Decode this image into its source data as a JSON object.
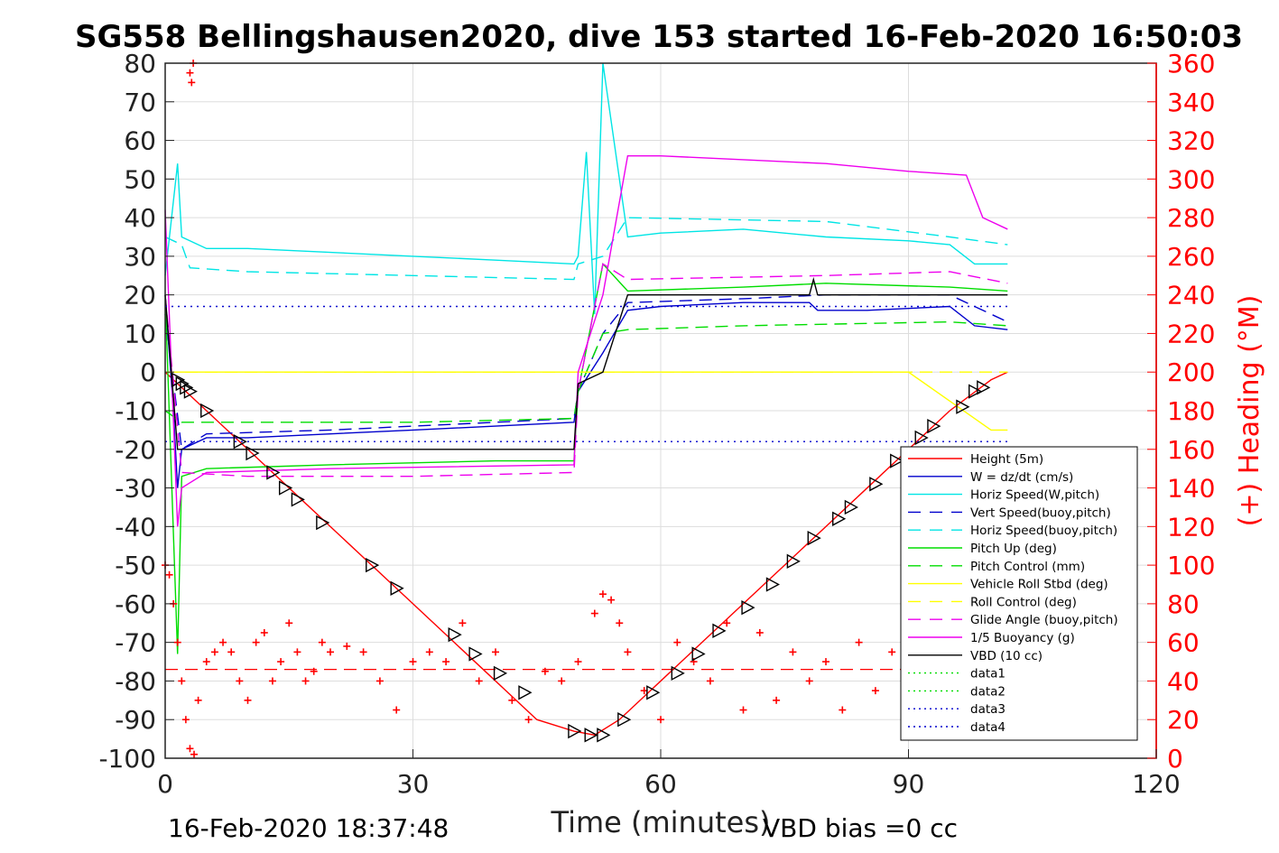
{
  "chart_data": {
    "type": "line",
    "title": "SG558 Bellingshausen2020, dive 153 started 16-Feb-2020 16:50:03",
    "xlabel": "Time (minutes)",
    "ylabel_right": "(+) Heading (°M)",
    "xlim": [
      0,
      120
    ],
    "ylim": [
      -100,
      80
    ],
    "ylim_right": [
      0,
      360
    ],
    "x_ticks": [
      "0",
      "30",
      "60",
      "90",
      "120"
    ],
    "y_ticks": [
      "80",
      "70",
      "60",
      "50",
      "40",
      "30",
      "20",
      "10",
      "0",
      "-10",
      "-20",
      "-30",
      "-40",
      "-50",
      "-60",
      "-70",
      "-80",
      "-90",
      "-100"
    ],
    "y_right_ticks": [
      "360",
      "340",
      "320",
      "300",
      "280",
      "260",
      "240",
      "220",
      "200",
      "180",
      "160",
      "140",
      "120",
      "100",
      "80",
      "60",
      "40",
      "20",
      "0"
    ],
    "grid": true,
    "legend_position": "bottom-right",
    "footer_left": "16-Feb-2020 18:37:48",
    "footer_right": "VBD bias =0 cc",
    "colors": {
      "height": "#ff0000",
      "w": "#0000cc",
      "horiz_speed_w": "#00e5e5",
      "vert_speed_buoy": "#0000cc",
      "horiz_speed_buoy": "#00e5e5",
      "pitch": "#00dd00",
      "pitch_control": "#00dd00",
      "roll": "#ffff00",
      "roll_control": "#ffff00",
      "glide_angle": "#ee00ee",
      "buoyancy": "#ee00ee",
      "vbd": "#000000",
      "heading": "#ff0000"
    },
    "series": [
      {
        "name": "Height (5m)",
        "style": "solid",
        "color": "#ff0000",
        "x": [
          0,
          5,
          10,
          15,
          20,
          25,
          30,
          35,
          40,
          45,
          49.5,
          52,
          55,
          60,
          65,
          70,
          75,
          80,
          85,
          90,
          95,
          100,
          102
        ],
        "y": [
          0,
          -10,
          -20,
          -30,
          -40,
          -50,
          -60,
          -70,
          -80,
          -90,
          -93,
          -94,
          -90,
          -80,
          -70,
          -60,
          -50,
          -40,
          -30,
          -20,
          -10,
          -2,
          0
        ]
      },
      {
        "name": "W = dz/dt (cm/s)",
        "style": "solid",
        "color": "#0000cc",
        "x": [
          0,
          1,
          1.5,
          2,
          5,
          10,
          20,
          30,
          40,
          49.5,
          50,
          53,
          56,
          60,
          70,
          78,
          79,
          85,
          95,
          98,
          102
        ],
        "y": [
          20,
          -10,
          -30,
          -20,
          -17,
          -17,
          -16,
          -15,
          -14,
          -13,
          -5,
          5,
          16,
          17,
          18,
          18,
          16,
          16,
          17,
          12,
          11
        ]
      },
      {
        "name": "Horiz Speed(W,pitch)",
        "style": "solid",
        "color": "#00e5e5",
        "x": [
          0,
          1.5,
          2,
          5,
          10,
          20,
          30,
          40,
          49.5,
          50,
          51,
          52,
          53,
          56,
          60,
          70,
          80,
          90,
          95,
          98,
          102
        ],
        "y": [
          25,
          54,
          35,
          32,
          32,
          31,
          30,
          29,
          28,
          30,
          57,
          15,
          80,
          35,
          36,
          37,
          35,
          34,
          33,
          28,
          28
        ]
      },
      {
        "name": "Vert Speed(buoy,pitch)",
        "style": "dashed",
        "color": "#0000cc",
        "x": [
          0,
          2,
          5,
          20,
          40,
          49.5,
          50,
          53,
          56,
          70,
          80,
          95,
          102
        ],
        "y": [
          15,
          -20,
          -16,
          -15,
          -13,
          -12,
          -5,
          10,
          18,
          19,
          20,
          20,
          13
        ]
      },
      {
        "name": "Horiz Speed(buoy,pitch)",
        "style": "dashed",
        "color": "#00e5e5",
        "x": [
          0,
          2,
          3,
          10,
          30,
          49.5,
          50,
          53,
          56,
          80,
          95,
          102
        ],
        "y": [
          35,
          33,
          27,
          26,
          25,
          24,
          28,
          30,
          40,
          39,
          35,
          33
        ]
      },
      {
        "name": "Pitch Up (deg)",
        "style": "solid",
        "color": "#00dd00",
        "x": [
          0,
          1.5,
          2,
          5,
          20,
          40,
          49.5,
          50,
          53,
          56,
          70,
          80,
          95,
          102
        ],
        "y": [
          20,
          -73,
          -27,
          -25,
          -24,
          -23,
          -23,
          -5,
          28,
          21,
          22,
          23,
          22,
          21
        ]
      },
      {
        "name": "Pitch Control (mm)",
        "style": "dashed",
        "color": "#00dd00",
        "x": [
          0,
          2,
          5,
          30,
          49.5,
          50,
          53,
          56,
          70,
          95,
          102
        ],
        "y": [
          -10,
          -13,
          -13,
          -13,
          -12,
          -5,
          10,
          11,
          12,
          13,
          12
        ]
      },
      {
        "name": "Vehicle Roll Stbd (deg)",
        "style": "solid",
        "color": "#ffff00",
        "x": [
          0,
          10,
          20,
          30,
          40,
          49.5,
          60,
          70,
          80,
          90,
          100,
          102
        ],
        "y": [
          0,
          0,
          0,
          0,
          0,
          0,
          0,
          0,
          0,
          0,
          -15,
          -15
        ]
      },
      {
        "name": "Roll Control (deg)",
        "style": "dashed",
        "color": "#ffff00",
        "x": [
          0,
          50,
          102
        ],
        "y": [
          0,
          0,
          0
        ]
      },
      {
        "name": "Glide Angle (buoy,pitch)",
        "style": "dashed",
        "color": "#ee00ee",
        "x": [
          0,
          2,
          10,
          30,
          49.5,
          50,
          53,
          56,
          80,
          95,
          102
        ],
        "y": [
          20,
          -26,
          -27,
          -27,
          -26,
          -5,
          28,
          24,
          25,
          26,
          23
        ]
      },
      {
        "name": "1/5 Buoyancy (g)",
        "style": "solid",
        "color": "#ee00ee",
        "x": [
          0,
          1.5,
          2,
          5,
          20,
          49.5,
          50,
          53,
          56,
          60,
          70,
          80,
          90,
          97,
          99,
          102
        ],
        "y": [
          42,
          -40,
          -30,
          -26,
          -25,
          -24,
          0,
          20,
          56,
          56,
          55,
          54,
          52,
          51,
          40,
          37
        ]
      },
      {
        "name": "VBD (10 cc)",
        "style": "solid",
        "color": "#000000",
        "x": [
          0,
          1.5,
          2,
          49.5,
          50,
          53,
          56,
          78,
          78.5,
          79,
          102
        ],
        "y": [
          20,
          -20,
          -20,
          -20,
          -3,
          0,
          20,
          20,
          24,
          20,
          20
        ]
      },
      {
        "name": "data1",
        "style": "dotted",
        "color": "#00dd00",
        "x": [],
        "y": []
      },
      {
        "name": "data2",
        "style": "dotted",
        "color": "#00dd00",
        "x": [],
        "y": []
      },
      {
        "name": "data3",
        "style": "dotted",
        "color": "#0000cc",
        "x": [
          0,
          102
        ],
        "y": [
          17,
          17
        ]
      },
      {
        "name": "data4",
        "style": "dotted",
        "color": "#0000cc",
        "x": [
          0,
          102
        ],
        "y": [
          -18,
          -18
        ]
      }
    ],
    "heading_series": {
      "name": "Heading",
      "marker": "+",
      "axis": "right",
      "color": "#ff0000",
      "x": [
        0,
        0.5,
        1,
        1.5,
        2,
        2.5,
        3,
        3.5,
        4,
        5,
        6,
        7,
        8,
        9,
        10,
        11,
        12,
        13,
        14,
        15,
        16,
        17,
        18,
        19,
        20,
        22,
        24,
        26,
        28,
        30,
        32,
        34,
        36,
        38,
        40,
        42,
        44,
        46,
        48,
        50,
        52,
        53,
        54,
        55,
        56,
        58,
        60,
        62,
        64,
        66,
        68,
        70,
        72,
        74,
        76,
        78,
        80,
        82,
        84,
        86,
        88,
        90
      ],
      "y": [
        100,
        95,
        80,
        60,
        40,
        20,
        5,
        2,
        30,
        50,
        55,
        60,
        55,
        40,
        30,
        60,
        65,
        40,
        50,
        70,
        55,
        40,
        45,
        60,
        55,
        58,
        55,
        40,
        25,
        50,
        55,
        50,
        70,
        40,
        55,
        30,
        20,
        45,
        40,
        50,
        75,
        85,
        82,
        70,
        55,
        35,
        20,
        60,
        50,
        40,
        70,
        25,
        65,
        30,
        55,
        40,
        50,
        25,
        60,
        35,
        55,
        40
      ]
    },
    "heading_outlier": {
      "x": [
        3,
        3.2,
        3.4
      ],
      "y": [
        355,
        350,
        360
      ]
    },
    "reference_line": {
      "name": "heading target",
      "axis": "right",
      "y": 46,
      "style": "dashed",
      "color": "#ff0000"
    },
    "vbd_markers": {
      "x": [
        1.5,
        2,
        2.5,
        3,
        5,
        9,
        10.5,
        13,
        14.5,
        16,
        19,
        25,
        28,
        35,
        37.5,
        40.5,
        43.5,
        49.5,
        51.5,
        53,
        55.5,
        59,
        62,
        64.5,
        67,
        70.5,
        73.5,
        76,
        78.5,
        81.5,
        83,
        86,
        88.5,
        91.5,
        93,
        96.5,
        98,
        99
      ],
      "y": [
        -2,
        -3,
        -4,
        -5,
        -10,
        -18,
        -21,
        -26,
        -30,
        -33,
        -39,
        -50,
        -56,
        -68,
        -73,
        -78,
        -83,
        -93,
        -94,
        -94,
        -90,
        -83,
        -78,
        -73,
        -67,
        -61,
        -55,
        -49,
        -43,
        -38,
        -35,
        -29,
        -23,
        -17,
        -14,
        -9,
        -5,
        -4
      ]
    }
  }
}
